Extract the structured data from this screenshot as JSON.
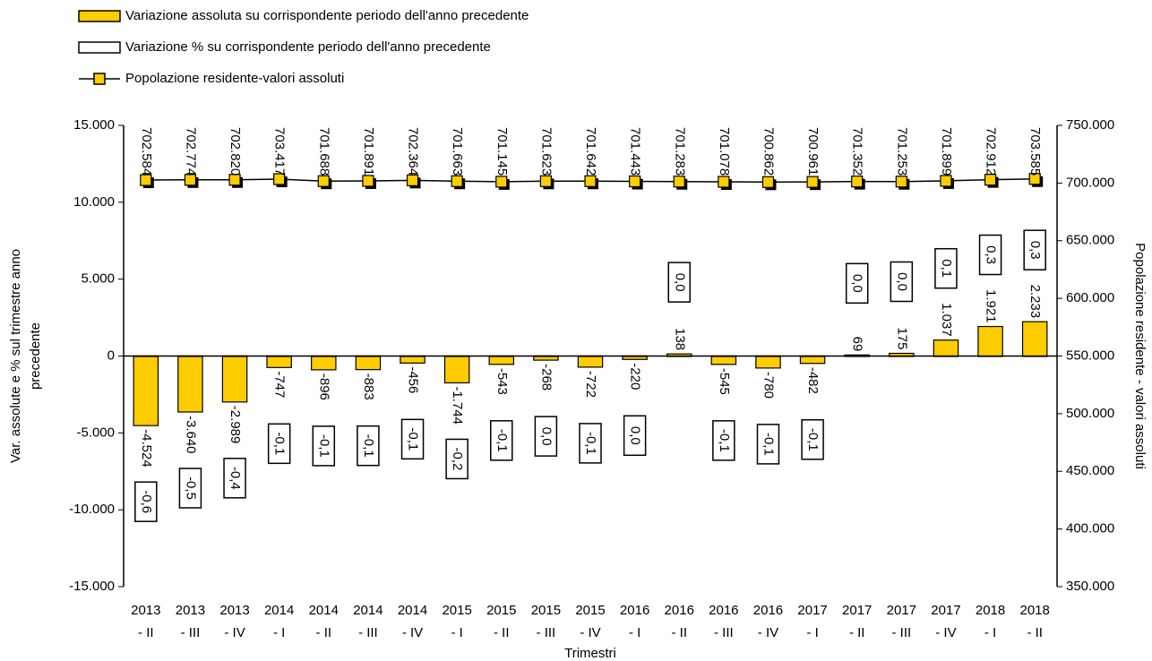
{
  "chart_data": {
    "type": "bar-line",
    "xlabel": "Trimestri",
    "ylabel": [
      "Var. assolute e % sul trimestre anno",
      "precedente"
    ],
    "y2label": "Popolazione residente - valori assoluti",
    "categories": [
      [
        "2013",
        "- II"
      ],
      [
        "2013",
        "- III"
      ],
      [
        "2013",
        "- IV"
      ],
      [
        "2014",
        "- I"
      ],
      [
        "2014",
        "- II"
      ],
      [
        "2014",
        "- III"
      ],
      [
        "2014",
        "- IV"
      ],
      [
        "2015",
        "- I"
      ],
      [
        "2015",
        "- II"
      ],
      [
        "2015",
        "- III"
      ],
      [
        "2015",
        "- IV"
      ],
      [
        "2016",
        "- I"
      ],
      [
        "2016",
        "- II"
      ],
      [
        "2016",
        "- III"
      ],
      [
        "2016",
        "- IV"
      ],
      [
        "2017",
        "- I"
      ],
      [
        "2017",
        "- II"
      ],
      [
        "2017",
        "- III"
      ],
      [
        "2017",
        "- IV"
      ],
      [
        "2018",
        "- I"
      ],
      [
        "2018",
        "- II"
      ]
    ],
    "ylim": [
      -15000,
      15000
    ],
    "yticks": [
      {
        "value": -15000,
        "label": "-15.000"
      },
      {
        "value": -10000,
        "label": "-10.000"
      },
      {
        "value": -5000,
        "label": "-5.000"
      },
      0,
      {
        "value": 5000,
        "label": "5.000"
      },
      {
        "value": 10000,
        "label": "10.000"
      },
      {
        "value": 15000,
        "label": "15.000"
      }
    ],
    "y2lim": [
      350000,
      750000
    ],
    "y2ticks": [
      {
        "value": 350000,
        "label": "350.000"
      },
      {
        "value": 400000,
        "label": "400.000"
      },
      {
        "value": 450000,
        "label": "450.000"
      },
      {
        "value": 500000,
        "label": "500.000"
      },
      {
        "value": 550000,
        "label": "550.000"
      },
      {
        "value": 600000,
        "label": "600.000"
      },
      {
        "value": 650000,
        "label": "650.000"
      },
      {
        "value": 700000,
        "label": "700.000"
      },
      {
        "value": 750000,
        "label": "750.000"
      }
    ],
    "series": [
      {
        "name": "Variazione assoluta su corrispondente periodo dell'anno precedente",
        "type": "bar",
        "color": "#ffcc00",
        "values": [
          -4524,
          -3640,
          -2989,
          -747,
          -896,
          -883,
          -456,
          -1744,
          -543,
          -268,
          -722,
          -220,
          138,
          -545,
          -780,
          -482,
          69,
          175,
          1037,
          1921,
          2233
        ],
        "value_labels": [
          "-4.524",
          "-3.640",
          "-2.989",
          "-747",
          "-896",
          "-883",
          "-456",
          "-1.744",
          "-543",
          "-268",
          "-722",
          "-220",
          "138",
          "-545",
          "-780",
          "-482",
          "69",
          "175",
          "1.037",
          "1.921",
          "2.233"
        ]
      },
      {
        "name": "Variazione % su corrispondente periodo dell'anno precedente",
        "type": "bar",
        "color": "#ffffff",
        "values": [
          -0.6,
          -0.5,
          -0.4,
          -0.1,
          -0.1,
          -0.1,
          -0.1,
          -0.2,
          -0.1,
          0.0,
          -0.1,
          0.0,
          0.0,
          -0.1,
          -0.1,
          -0.1,
          0.0,
          0.0,
          0.1,
          0.3,
          0.3
        ],
        "value_labels": [
          "-0,6",
          "-0,5",
          "-0,4",
          "-0,1",
          "-0,1",
          "-0,1",
          "-0,1",
          "-0,2",
          "-0,1",
          "0,0",
          "-0,1",
          "0,0",
          "0,0",
          "-0,1",
          "-0,1",
          "-0,1",
          "0,0",
          "0,0",
          "0,1",
          "0,3",
          "0,3"
        ]
      },
      {
        "name": "Popolazione residente-valori assoluti",
        "type": "line",
        "axis": "y2",
        "color": "#ffcc00",
        "values": [
          702584,
          702774,
          702820,
          703417,
          701688,
          701891,
          702364,
          701663,
          701145,
          701623,
          701642,
          701443,
          701283,
          701078,
          700862,
          700961,
          701352,
          701253,
          701899,
          702912,
          703585
        ],
        "value_labels": [
          "702.584",
          "702.774",
          "702.820",
          "703.417",
          "701.688",
          "701.891",
          "702.364",
          "701.663",
          "701.145",
          "701.623",
          "701.642",
          "701.443",
          "701.283",
          "701.078",
          "700.862",
          "700.961",
          "701.352",
          "701.253",
          "701.899",
          "702.912",
          "703.585"
        ]
      }
    ]
  }
}
